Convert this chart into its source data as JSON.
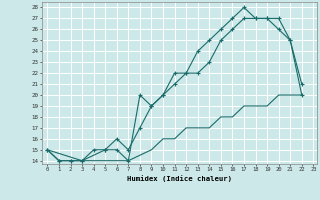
{
  "xlabel": "Humidex (Indice chaleur)",
  "bg_color": "#cce8e8",
  "grid_color": "#ffffff",
  "line_color": "#1a6b6b",
  "xlim": [
    -0.5,
    23.3
  ],
  "ylim": [
    13.7,
    28.5
  ],
  "yticks": [
    14,
    15,
    16,
    17,
    18,
    19,
    20,
    21,
    22,
    23,
    24,
    25,
    26,
    27,
    28
  ],
  "xticks": [
    0,
    1,
    2,
    3,
    4,
    5,
    6,
    7,
    8,
    9,
    10,
    11,
    12,
    13,
    14,
    15,
    16,
    17,
    18,
    19,
    20,
    21,
    22,
    23
  ],
  "line1_x": [
    0,
    1,
    2,
    3,
    4,
    5,
    6,
    7,
    8,
    9,
    10,
    11,
    12,
    13,
    14,
    15,
    16,
    17,
    18,
    19,
    20,
    21,
    22
  ],
  "line1_y": [
    15,
    14,
    14,
    14,
    15,
    15,
    15,
    14,
    20,
    19,
    20,
    22,
    22,
    24,
    25,
    26,
    27,
    28,
    27,
    27,
    26,
    25,
    21
  ],
  "line2_x": [
    0,
    1,
    2,
    3,
    5,
    6,
    7,
    8,
    9,
    10,
    11,
    12,
    13,
    14,
    15,
    16,
    17,
    18,
    19,
    20,
    21,
    22
  ],
  "line2_y": [
    15,
    14,
    14,
    14,
    15,
    16,
    15,
    17,
    19,
    20,
    21,
    22,
    22,
    23,
    25,
    26,
    27,
    27,
    27,
    27,
    25,
    20
  ],
  "line3_x": [
    0,
    3,
    7,
    9,
    10,
    11,
    12,
    13,
    14,
    15,
    16,
    17,
    18,
    19,
    20,
    21,
    22
  ],
  "line3_y": [
    15,
    14,
    14,
    15,
    16,
    16,
    17,
    17,
    17,
    18,
    18,
    19,
    19,
    19,
    20,
    20,
    20
  ]
}
